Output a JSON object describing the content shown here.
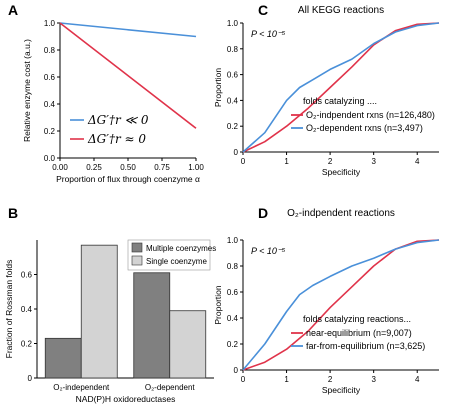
{
  "chart_data": [
    {
      "panel": "A",
      "type": "line",
      "xlabel": "Proportion of flux through coenzyme α",
      "ylabel": "Relative enzyme cost (a.u.)",
      "xlim": [
        0,
        1
      ],
      "ylim": [
        0,
        1
      ],
      "xticks": [
        "0.00",
        "0.25",
        "0.50",
        "0.75",
        "1.00"
      ],
      "yticks": [
        "0.0",
        "0.2",
        "0.4",
        "0.6",
        "0.8",
        "1.0"
      ],
      "legend_position": "bottom-left",
      "series": [
        {
          "name": "ΔG′†r ≪ 0",
          "color": "#4a90d9",
          "x": [
            0,
            1
          ],
          "y": [
            1.0,
            0.9
          ]
        },
        {
          "name": "ΔG′†r ≈ 0",
          "color": "#e0334a",
          "x": [
            0,
            1
          ],
          "y": [
            1.0,
            0.22
          ]
        }
      ]
    },
    {
      "panel": "B",
      "type": "bar",
      "categories": [
        "O₂-independent",
        "O₂-dependent"
      ],
      "xlabel": "NAD(P)H oxidoreductases",
      "ylabel": "Fraction of Rossman folds",
      "ylim": [
        0,
        0.8
      ],
      "yticks": [
        "0",
        "0.2",
        "0.4",
        "0.6"
      ],
      "legend_position": "top-right",
      "series": [
        {
          "name": "Multiple coenzymes",
          "color": "#808080",
          "values": [
            0.23,
            0.61
          ]
        },
        {
          "name": "Single coenzyme",
          "color": "#d3d3d3",
          "values": [
            0.77,
            0.39
          ]
        }
      ]
    },
    {
      "panel": "C",
      "type": "line",
      "title": "All KEGG reactions",
      "annotation": "P < 10⁻⁵",
      "legend_title": "folds catalyzing  ....",
      "xlabel": "Specificity",
      "ylabel": "Proportion",
      "xlim": [
        0,
        4.5
      ],
      "ylim": [
        0,
        1
      ],
      "xticks": [
        "0",
        "1",
        "2",
        "3",
        "4"
      ],
      "yticks": [
        "0",
        "0.2",
        "0.4",
        "0.6",
        "0.8",
        "1.0"
      ],
      "series": [
        {
          "name": "O₂-indpendent rxns",
          "n_label": "(n=126,480)",
          "color": "#e0334a",
          "x": [
            0,
            0.5,
            1,
            1.5,
            2,
            2.5,
            3,
            3.5,
            4,
            4.5
          ],
          "y": [
            0,
            0.08,
            0.2,
            0.34,
            0.5,
            0.66,
            0.83,
            0.94,
            0.99,
            1.0
          ]
        },
        {
          "name": "O₂-dependent rxns",
          "n_label": "(n=3,497)",
          "color": "#4a90d9",
          "x": [
            0,
            0.5,
            1,
            1.3,
            1.6,
            2,
            2.5,
            3,
            3.5,
            4,
            4.5
          ],
          "y": [
            0,
            0.15,
            0.4,
            0.5,
            0.56,
            0.64,
            0.72,
            0.84,
            0.93,
            0.98,
            1.0
          ]
        }
      ]
    },
    {
      "panel": "D",
      "type": "line",
      "title": "O₂-indpendent reactions",
      "annotation": "P < 10⁻⁵",
      "legend_title": "folds catalyzing reactions...",
      "xlabel": "Specificity",
      "ylabel": "Proportion",
      "xlim": [
        0,
        4.5
      ],
      "ylim": [
        0,
        1
      ],
      "xticks": [
        "0",
        "1",
        "2",
        "3",
        "4"
      ],
      "yticks": [
        "0",
        "0.2",
        "0.4",
        "0.6",
        "0.8",
        "1.0"
      ],
      "series": [
        {
          "name": "near-equilibrium",
          "n_label": "(n=9,007)",
          "color": "#e0334a",
          "x": [
            0,
            0.5,
            1,
            1.5,
            2,
            2.5,
            3,
            3.5,
            4,
            4.5
          ],
          "y": [
            0,
            0.06,
            0.16,
            0.3,
            0.48,
            0.64,
            0.8,
            0.93,
            0.99,
            1.0
          ]
        },
        {
          "name": "far-from-equilibrium",
          "n_label": "(n=3,625)",
          "color": "#4a90d9",
          "x": [
            0,
            0.5,
            1,
            1.3,
            1.6,
            2,
            2.5,
            3,
            3.5,
            4,
            4.5
          ],
          "y": [
            0,
            0.2,
            0.45,
            0.58,
            0.65,
            0.72,
            0.8,
            0.86,
            0.93,
            0.98,
            1.0
          ]
        }
      ]
    }
  ]
}
